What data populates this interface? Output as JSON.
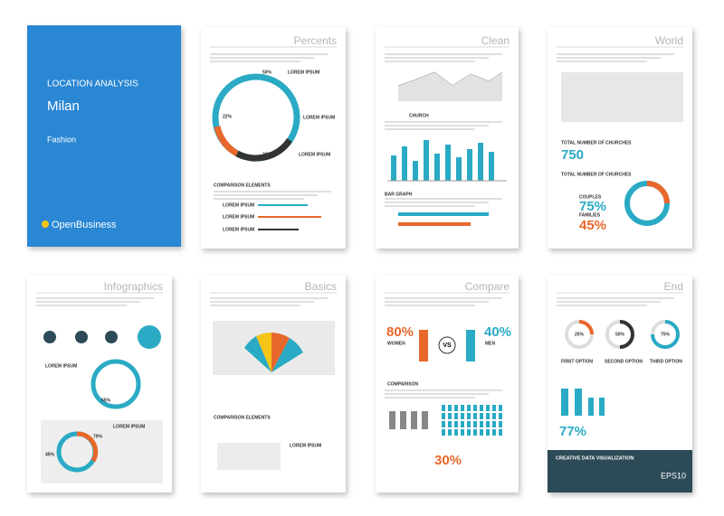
{
  "cover": {
    "heading": "LOCATION ANALYSIS",
    "city": "Milan",
    "subtitle": "Fashion",
    "brand": "OpenBusiness"
  },
  "pages": [
    {
      "title": "Percents",
      "labels": [
        "50%",
        "LOREM IPSUM",
        "22%",
        "LOREM IPSUM",
        "20%",
        "LOREM IPSUM",
        "COMPARISON ELEMENTS",
        "LOREM IPSUM",
        "LOREM IPSUM",
        "LOREM IPSUM"
      ]
    },
    {
      "title": "Clean",
      "labels": [
        "CHURCH",
        "BAR GRAPH"
      ]
    },
    {
      "title": "World",
      "labels": [
        "750",
        "TOTAL NUMBER OF CHURCHES",
        "TOTAL NUMBER OF CHURCHES",
        "COUPLES",
        "75%",
        "FAMILIES",
        "45%"
      ]
    },
    {
      "title": "Infographics",
      "labels": [
        "LOREM IPSUM",
        "65%",
        "LOREM IPSUM",
        "70%",
        "45%"
      ]
    },
    {
      "title": "Basics",
      "labels": [
        "COMPARISON ELEMENTS",
        "LOREM IPSUM"
      ]
    },
    {
      "title": "Compare",
      "labels": [
        "80%",
        "WOMEN",
        "VS",
        "40%",
        "MEN",
        "COMPARISON",
        "30%"
      ]
    },
    {
      "title": "End",
      "labels": [
        "25%",
        "50%",
        "75%",
        "FIRST OPTION",
        "SECOND OPTION",
        "THIRD OPTION",
        "77%",
        "CREATIVE DATA VISUALIZATION",
        "EPS10"
      ]
    }
  ]
}
